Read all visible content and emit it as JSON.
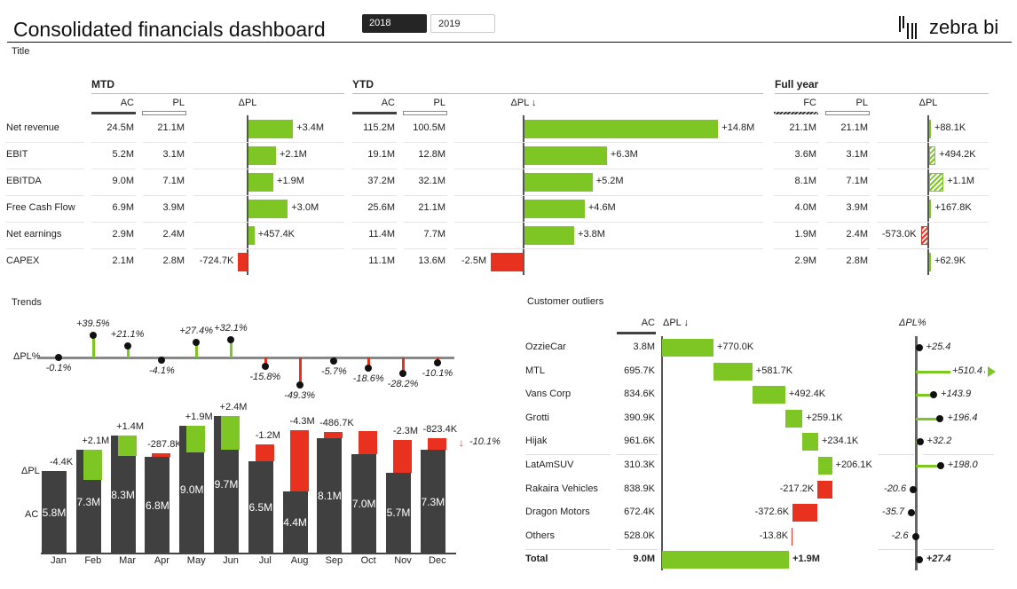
{
  "header": {
    "title": "Consolidated financials dashboard",
    "years": [
      "2018",
      "2019"
    ],
    "selected_year": "2018",
    "logo": "zebra bi",
    "subtitle": "Title"
  },
  "colors": {
    "positive": "#7ec623",
    "negative": "#e8321f",
    "actual": "#404040",
    "axis": "#555555"
  },
  "kpi": {
    "rows": [
      "Net revenue",
      "EBIT",
      "EBITDA",
      "Free Cash Flow",
      "Net earnings",
      "CAPEX"
    ],
    "sections": [
      {
        "title": "MTD",
        "cols": [
          "AC",
          "PL",
          "ΔPL"
        ],
        "a": [
          "24.5M",
          "5.2M",
          "9.0M",
          "6.9M",
          "2.9M",
          "2.1M"
        ],
        "b": [
          "21.1M",
          "3.1M",
          "7.1M",
          "3.9M",
          "2.4M",
          "2.8M"
        ],
        "delta": [
          "+3.4M",
          "+2.1M",
          "+1.9M",
          "+3.0M",
          "+457.4K",
          "-724.7K"
        ],
        "delta_m": [
          3.4,
          2.1,
          1.9,
          3.0,
          0.4574,
          -0.7247
        ]
      },
      {
        "title": "YTD",
        "cols": [
          "AC",
          "PL",
          "ΔPL ↓"
        ],
        "a": [
          "115.2M",
          "19.1M",
          "37.2M",
          "25.6M",
          "11.4M",
          "11.1M"
        ],
        "b": [
          "100.5M",
          "12.8M",
          "32.1M",
          "21.1M",
          "7.7M",
          "13.6M"
        ],
        "delta": [
          "+14.8M",
          "+6.3M",
          "+5.2M",
          "+4.6M",
          "+3.8M",
          "-2.5M"
        ],
        "delta_m": [
          14.8,
          6.3,
          5.2,
          4.6,
          3.8,
          -2.5
        ]
      },
      {
        "title": "Full year",
        "cols": [
          "FC",
          "PL",
          "ΔPL"
        ],
        "a": [
          "21.1M",
          "3.6M",
          "8.1M",
          "4.0M",
          "1.9M",
          "2.9M"
        ],
        "b": [
          "21.1M",
          "3.1M",
          "7.1M",
          "3.9M",
          "2.4M",
          "2.8M"
        ],
        "delta": [
          "+88.1K",
          "+494.2K",
          "+1.1M",
          "+167.8K",
          "-573.0K",
          "+62.9K"
        ],
        "delta_m": [
          0.0881,
          0.4942,
          1.1,
          0.1678,
          -0.573,
          0.0629
        ]
      }
    ]
  },
  "trends": {
    "title": "Trends",
    "pct_label": "ΔPL%",
    "delta_label": "ΔPL",
    "ac_label": "AC",
    "months": [
      "Jan",
      "Feb",
      "Mar",
      "Apr",
      "May",
      "Jun",
      "Jul",
      "Aug",
      "Sep",
      "Oct",
      "Nov",
      "Dec"
    ],
    "pct": [
      -0.1,
      39.5,
      21.1,
      -4.1,
      27.4,
      32.1,
      -15.8,
      -49.3,
      -5.7,
      -18.6,
      -28.2,
      -10.1
    ],
    "pct_labels": [
      "-0.1%",
      "+39.5%",
      "+21.1%",
      "-4.1%",
      "+27.4%",
      "+32.1%",
      "-15.8%",
      "-49.3%",
      "-5.7%",
      "-18.6%",
      "-28.2%",
      "-10.1%"
    ],
    "ac": [
      5.8,
      7.3,
      8.3,
      6.8,
      9.0,
      9.7,
      6.5,
      4.4,
      8.1,
      7.0,
      5.7,
      7.3
    ],
    "ac_labels": [
      "5.8M",
      "7.3M",
      "8.3M",
      "6.8M",
      "9.0M",
      "9.7M",
      "6.5M",
      "4.4M",
      "8.1M",
      "7.0M",
      "5.7M",
      "7.3M"
    ],
    "delta": [
      -0.0044,
      2.1,
      1.4,
      -0.2878,
      1.9,
      2.4,
      -1.2,
      -4.3,
      -0.4867,
      -1.6,
      -2.3,
      -0.8234
    ],
    "delta_labels": [
      "-4.4K",
      "+2.1M",
      "+1.4M",
      "-287.8K",
      "+1.9M",
      "+2.4M",
      "-1.2M",
      "-4.3M",
      "-486.7K",
      "",
      "-2.3M",
      "-823.4K"
    ],
    "total_pct_label": "-10.1%"
  },
  "outliers": {
    "title": "Customer outliers",
    "col_ac": "AC",
    "col_delta": "ΔPL ↓",
    "col_pct": "ΔPL%",
    "rows": [
      {
        "name": "OzzieCar",
        "ac": "3.8M",
        "delta": "+770.0K",
        "d": 770.0,
        "pct": "+25.4",
        "p": 25.4
      },
      {
        "name": "MTL",
        "ac": "695.7K",
        "delta": "+581.7K",
        "d": 581.7,
        "pct": "+510.4",
        "p": 510.4
      },
      {
        "name": "Vans Corp",
        "ac": "834.6K",
        "delta": "+492.4K",
        "d": 492.4,
        "pct": "+143.9",
        "p": 143.9
      },
      {
        "name": "Grotti",
        "ac": "390.9K",
        "delta": "+259.1K",
        "d": 259.1,
        "pct": "+196.4",
        "p": 196.4
      },
      {
        "name": "Hijak",
        "ac": "961.6K",
        "delta": "+234.1K",
        "d": 234.1,
        "pct": "+32.2",
        "p": 32.2
      },
      {
        "name": "LatAmSUV",
        "ac": "310.3K",
        "delta": "+206.1K",
        "d": 206.1,
        "pct": "+198.0",
        "p": 198.0
      },
      {
        "name": "Rakaira Vehicles",
        "ac": "838.9K",
        "delta": "-217.2K",
        "d": -217.2,
        "pct": "-20.6",
        "p": -20.6
      },
      {
        "name": "Dragon Motors",
        "ac": "672.4K",
        "delta": "-372.6K",
        "d": -372.6,
        "pct": "-35.7",
        "p": -35.7
      },
      {
        "name": "Others",
        "ac": "528.0K",
        "delta": "-13.8K",
        "d": -13.8,
        "pct": "-2.6",
        "p": -2.6
      }
    ],
    "total": {
      "name": "Total",
      "ac": "9.0M",
      "delta": "+1.9M",
      "d": 1900,
      "pct": "+27.4",
      "p": 27.4
    }
  }
}
